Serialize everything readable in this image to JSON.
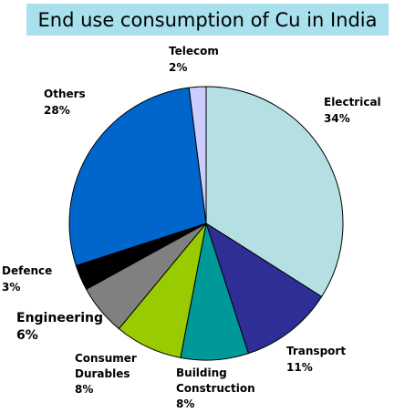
{
  "chart_data": {
    "type": "pie",
    "title": "End use consumption of Cu in India",
    "slices": [
      {
        "label": "Electrical",
        "value": 34,
        "pct_label": "34%",
        "color": "#b4e0e4"
      },
      {
        "label": "Transport",
        "value": 11,
        "pct_label": "11%",
        "color": "#2e2e96"
      },
      {
        "label": "Building Construction",
        "value": 8,
        "pct_label": "8%",
        "color": "#00999a"
      },
      {
        "label": "Consumer Durables",
        "value": 8,
        "pct_label": "8%",
        "color": "#99cc00"
      },
      {
        "label": "Engineering",
        "value": 6,
        "pct_label": "6%",
        "color": "#808080"
      },
      {
        "label": "Defence",
        "value": 3,
        "pct_label": "3%",
        "color": "#000000"
      },
      {
        "label": "Others",
        "value": 28,
        "pct_label": "28%",
        "color": "#0066cc"
      },
      {
        "label": "Telecom",
        "value": 2,
        "pct_label": "2%",
        "color": "#ccccff"
      }
    ],
    "start_angle_deg": 0,
    "direction": "clockwise"
  },
  "labels": {
    "electrical": "Electrical",
    "transport": "Transport",
    "building_line1": "Building",
    "building_line2": "Construction",
    "consumer_line1": "Consumer",
    "consumer_line2": "Durables",
    "engineering": "Engineering",
    "defence": "Defence",
    "others": "Others",
    "telecom": "Telecom"
  }
}
